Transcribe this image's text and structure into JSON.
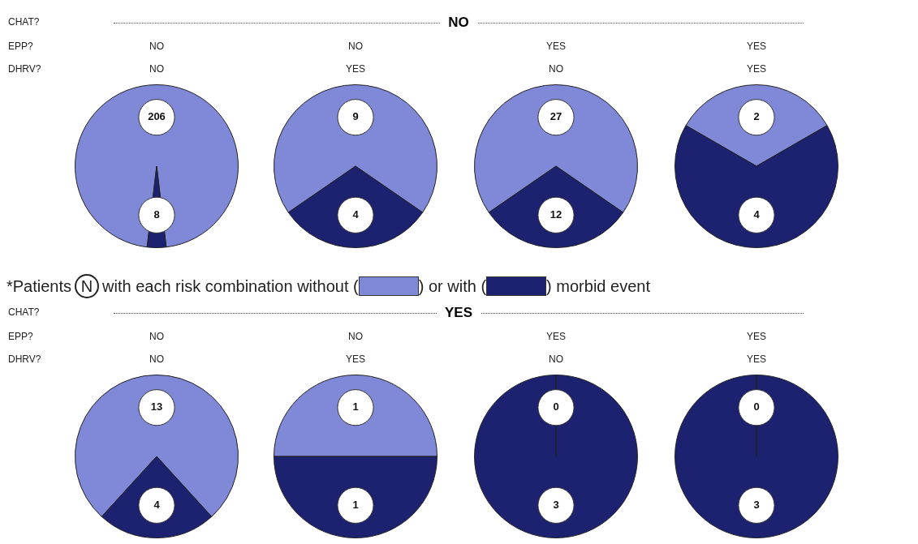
{
  "chart_data": [
    {
      "type": "other",
      "title": "NO",
      "annotations": [
        "CHAT?",
        "EPP?",
        "DHRV?"
      ]
    },
    {
      "type": "pie",
      "categories": [
        null,
        null
      ],
      "values": [
        206,
        8
      ],
      "colors": [
        "#8088d8",
        "#1c2170"
      ],
      "data_labels": true,
      "annotations": [
        "NO",
        "NO"
      ]
    },
    {
      "type": "pie",
      "categories": [
        null,
        null
      ],
      "values": [
        9,
        4
      ],
      "colors": [
        "#8088d8",
        "#1c2170"
      ],
      "data_labels": true,
      "annotations": [
        "NO",
        "YES"
      ]
    },
    {
      "type": "pie",
      "categories": [
        null,
        null
      ],
      "values": [
        27,
        12
      ],
      "colors": [
        "#8088d8",
        "#1c2170"
      ],
      "data_labels": true,
      "annotations": [
        "YES",
        "NO"
      ]
    },
    {
      "type": "pie",
      "categories": [
        null,
        null
      ],
      "values": [
        2,
        4
      ],
      "colors": [
        "#8088d8",
        "#1c2170"
      ],
      "data_labels": true,
      "annotations": [
        "YES",
        "YES"
      ]
    },
    {
      "type": "other",
      "annotations": [
        "*Patients",
        "N",
        "with each risk combination without (",
        ") or with (",
        ") morbid event"
      ]
    },
    {
      "type": "other",
      "title": "YES",
      "annotations": [
        "CHAT?",
        "EPP?",
        "DHRV?"
      ]
    },
    {
      "type": "pie",
      "categories": [
        null,
        null
      ],
      "values": [
        13,
        4
      ],
      "colors": [
        "#8088d8",
        "#1c2170"
      ],
      "data_labels": true,
      "annotations": [
        "NO",
        "NO"
      ]
    },
    {
      "type": "pie",
      "categories": [
        null,
        null
      ],
      "values": [
        1,
        1
      ],
      "colors": [
        "#8088d8",
        "#1c2170"
      ],
      "data_labels": true,
      "annotations": [
        "NO",
        "YES"
      ]
    },
    {
      "type": "pie",
      "categories": [
        null,
        null
      ],
      "values": [
        0,
        3
      ],
      "colors": [
        "#8088d8",
        "#1c2170"
      ],
      "value_labels": [
        "0",
        "3"
      ],
      "annotations": [
        "YES",
        "NO"
      ]
    },
    {
      "type": "pie",
      "categories": [
        null,
        null
      ],
      "values": [
        0,
        3
      ],
      "colors": [
        "#8088d8",
        "#1c2170"
      ],
      "value_labels": [
        "0",
        "3"
      ],
      "annotations": [
        "YES",
        "YES"
      ]
    }
  ]
}
